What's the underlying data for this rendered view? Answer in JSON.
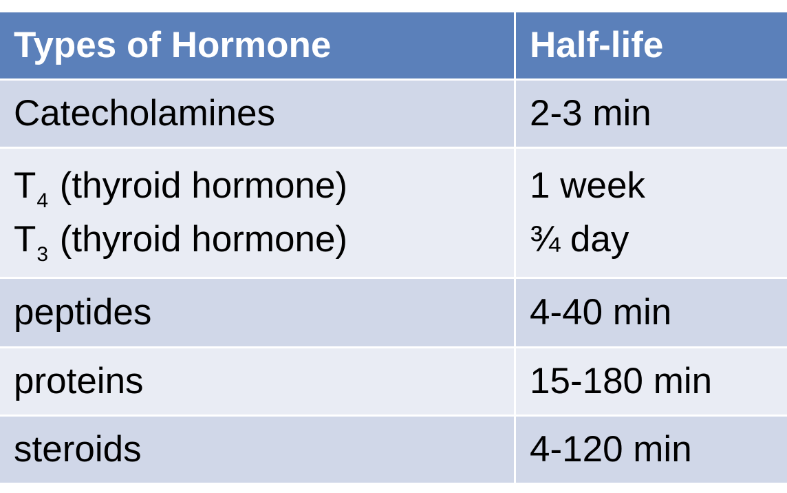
{
  "table": {
    "headers": [
      "Types of Hormone",
      "Half-life"
    ],
    "rows": [
      {
        "type": "Catecholamines",
        "half_life": "2-3 min"
      },
      {
        "type_lines": [
          {
            "prefix": "T",
            "sub": "4",
            "rest": " (thyroid hormone)"
          },
          {
            "prefix": "T",
            "sub": "3",
            "rest": " (thyroid hormone)"
          }
        ],
        "half_life_lines": [
          "1 week",
          "¾  day"
        ]
      },
      {
        "type": "peptides",
        "half_life": "4-40 min"
      },
      {
        "type": "proteins",
        "half_life": "15-180 min"
      },
      {
        "type": "steroids",
        "half_life": "4-120 min"
      }
    ]
  },
  "colors": {
    "header_bg": "#5b80ba",
    "row_dark": "#d0d7e8",
    "row_light": "#e9ecf4"
  }
}
